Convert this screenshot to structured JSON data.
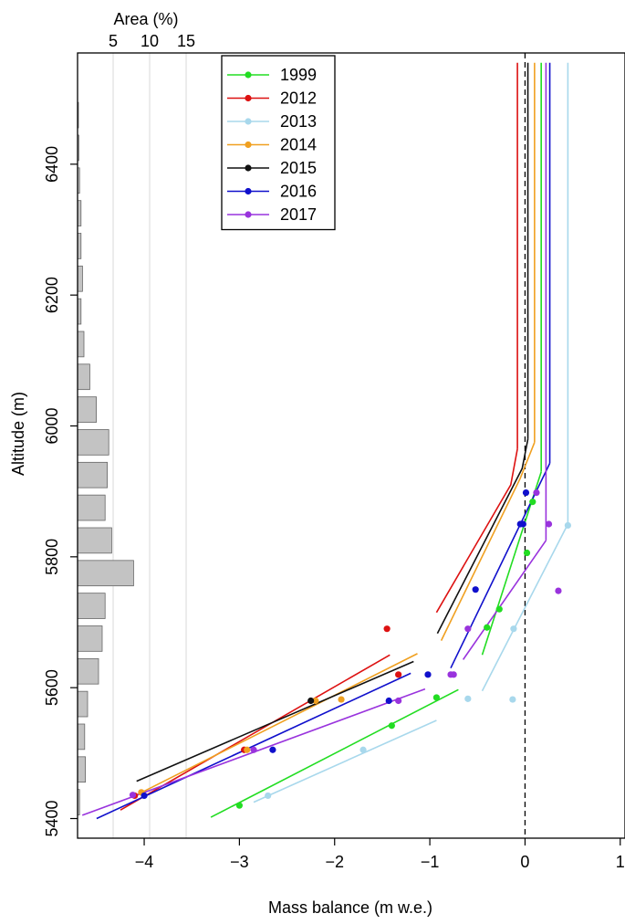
{
  "chart_data": {
    "type": "line",
    "xlabel": "Mass balance (m w.e.)",
    "ylabel": "Altitude (m)",
    "top_axis_label": "Area (%)",
    "xlim": [
      -4.7,
      1.05
    ],
    "ylim": [
      5370,
      6570
    ],
    "xticks": [
      -4,
      -3,
      -2,
      -1,
      0,
      1
    ],
    "yticks": [
      5400,
      5600,
      5800,
      6000,
      6200,
      6400
    ],
    "area_ticks": [
      5,
      10,
      15
    ],
    "zero_line": 0,
    "area_histogram": {
      "bin_height": 50,
      "bins": [
        {
          "altitude": 5425,
          "area": 0.4
        },
        {
          "altitude": 5475,
          "area": 1.2
        },
        {
          "altitude": 5525,
          "area": 1.1
        },
        {
          "altitude": 5575,
          "area": 1.5
        },
        {
          "altitude": 5625,
          "area": 3.0
        },
        {
          "altitude": 5675,
          "area": 3.5
        },
        {
          "altitude": 5725,
          "area": 3.9
        },
        {
          "altitude": 5775,
          "area": 7.8
        },
        {
          "altitude": 5825,
          "area": 4.8
        },
        {
          "altitude": 5875,
          "area": 3.9
        },
        {
          "altitude": 5925,
          "area": 4.2
        },
        {
          "altitude": 5975,
          "area": 4.4
        },
        {
          "altitude": 6025,
          "area": 2.7
        },
        {
          "altitude": 6075,
          "area": 1.8
        },
        {
          "altitude": 6125,
          "area": 1.0
        },
        {
          "altitude": 6175,
          "area": 0.6
        },
        {
          "altitude": 6225,
          "area": 0.8
        },
        {
          "altitude": 6275,
          "area": 0.6
        },
        {
          "altitude": 6325,
          "area": 0.6
        },
        {
          "altitude": 6375,
          "area": 0.4
        },
        {
          "altitude": 6425,
          "area": 0.3
        },
        {
          "altitude": 6475,
          "area": 0.1
        }
      ]
    },
    "legend": {
      "position": "top-left"
    },
    "series": [
      {
        "name": "1999",
        "color": "#22dd22",
        "points": [
          [
            -3.0,
            5420
          ],
          [
            -0.93,
            5585
          ],
          [
            -1.4,
            5542
          ],
          [
            -0.4,
            5692
          ],
          [
            -0.27,
            5720
          ],
          [
            0.02,
            5806
          ],
          [
            0.08,
            5884
          ]
        ],
        "fit_lines": [
          [
            [
              -3.3,
              5402
            ],
            [
              -0.7,
              5597
            ]
          ],
          [
            [
              -0.45,
              5650
            ],
            [
              0.17,
              5930
            ]
          ]
        ],
        "vertical": {
          "x": 0.17,
          "from": 5930,
          "to": 6555
        }
      },
      {
        "name": "2012",
        "color": "#dd1111",
        "points": [
          [
            -4.1,
            5435
          ],
          [
            -2.95,
            5505
          ],
          [
            -1.33,
            5620
          ],
          [
            -1.45,
            5690
          ]
        ],
        "fit_lines": [
          [
            [
              -4.25,
              5413
            ],
            [
              -1.42,
              5650
            ]
          ],
          [
            [
              -0.93,
              5715
            ],
            [
              -0.15,
              5910
            ],
            [
              -0.08,
              5965
            ]
          ]
        ],
        "vertical": {
          "x": -0.08,
          "from": 5965,
          "to": 6555
        }
      },
      {
        "name": "2013",
        "color": "#a8d8ec",
        "points": [
          [
            -2.7,
            5435
          ],
          [
            -1.7,
            5505
          ],
          [
            -0.6,
            5583
          ],
          [
            -0.13,
            5582
          ],
          [
            -0.12,
            5690
          ],
          [
            0.45,
            5848
          ]
        ],
        "fit_lines": [
          [
            [
              -2.85,
              5425
            ],
            [
              -0.93,
              5550
            ]
          ],
          [
            [
              -0.45,
              5595
            ],
            [
              0.45,
              5850
            ]
          ]
        ],
        "vertical": {
          "x": 0.45,
          "from": 5850,
          "to": 6555
        }
      },
      {
        "name": "2014",
        "color": "#f0a020",
        "points": [
          [
            -4.03,
            5440
          ],
          [
            -2.92,
            5505
          ],
          [
            -2.2,
            5580
          ],
          [
            -1.93,
            5582
          ]
        ],
        "fit_lines": [
          [
            [
              -4.08,
              5436
            ],
            [
              -1.13,
              5652
            ]
          ],
          [
            [
              -0.88,
              5672
            ],
            [
              -0.05,
              5920
            ],
            [
              0.1,
              5975
            ]
          ]
        ],
        "vertical": {
          "x": 0.1,
          "from": 5975,
          "to": 6555
        }
      },
      {
        "name": "2015",
        "color": "#111111",
        "points": [
          [
            -2.25,
            5580
          ]
        ],
        "fit_lines": [
          [
            [
              -4.08,
              5457
            ],
            [
              -1.17,
              5640
            ]
          ],
          [
            [
              -0.92,
              5683
            ],
            [
              -0.03,
              5935
            ],
            [
              0.03,
              5980
            ]
          ]
        ],
        "vertical": {
          "x": 0.03,
          "from": 5980,
          "to": 6555
        }
      },
      {
        "name": "2016",
        "color": "#1010cc",
        "points": [
          [
            -4.0,
            5435
          ],
          [
            -2.65,
            5505
          ],
          [
            -1.43,
            5580
          ],
          [
            -1.02,
            5620
          ],
          [
            -0.52,
            5750
          ],
          [
            -0.05,
            5850
          ],
          [
            -0.02,
            5850
          ],
          [
            0.01,
            5898
          ]
        ],
        "fit_lines": [
          [
            [
              -4.5,
              5400
            ],
            [
              -1.2,
              5622
            ]
          ],
          [
            [
              -0.78,
              5630
            ],
            [
              0.26,
              5943
            ]
          ]
        ],
        "vertical": {
          "x": 0.26,
          "from": 5943,
          "to": 6555
        }
      },
      {
        "name": "2017",
        "color": "#9933dd",
        "points": [
          [
            -4.12,
            5436
          ],
          [
            -2.85,
            5505
          ],
          [
            -1.33,
            5580
          ],
          [
            -0.78,
            5620
          ],
          [
            -0.75,
            5620
          ],
          [
            -0.6,
            5690
          ],
          [
            0.12,
            5898
          ],
          [
            0.25,
            5850
          ],
          [
            0.35,
            5748
          ]
        ],
        "fit_lines": [
          [
            [
              -4.65,
              5405
            ],
            [
              -1.05,
              5598
            ]
          ],
          [
            [
              -0.65,
              5643
            ],
            [
              0.22,
              5825
            ]
          ]
        ],
        "vertical": {
          "x": 0.22,
          "from": 5825,
          "to": 6555
        }
      }
    ]
  }
}
